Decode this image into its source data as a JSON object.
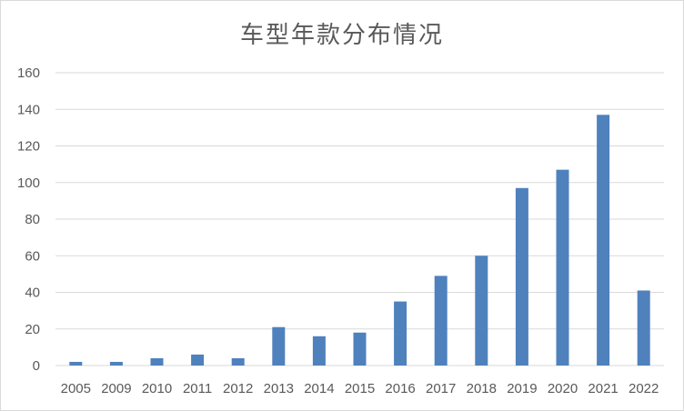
{
  "chart_data": {
    "type": "bar",
    "title": "车型年款分布情况",
    "categories": [
      "2005",
      "2009",
      "2010",
      "2011",
      "2012",
      "2013",
      "2014",
      "2015",
      "2016",
      "2017",
      "2018",
      "2019",
      "2020",
      "2021",
      "2022"
    ],
    "values": [
      2,
      2,
      4,
      6,
      4,
      21,
      16,
      18,
      35,
      49,
      60,
      97,
      107,
      137,
      41
    ],
    "ylim": [
      0,
      160
    ],
    "yticks": [
      0,
      20,
      40,
      60,
      80,
      100,
      120,
      140,
      160
    ],
    "xlabel": "",
    "ylabel": "",
    "grid": true,
    "legend": "none",
    "bar_color": "#4f81bd",
    "grid_color": "#d9d9d9"
  }
}
